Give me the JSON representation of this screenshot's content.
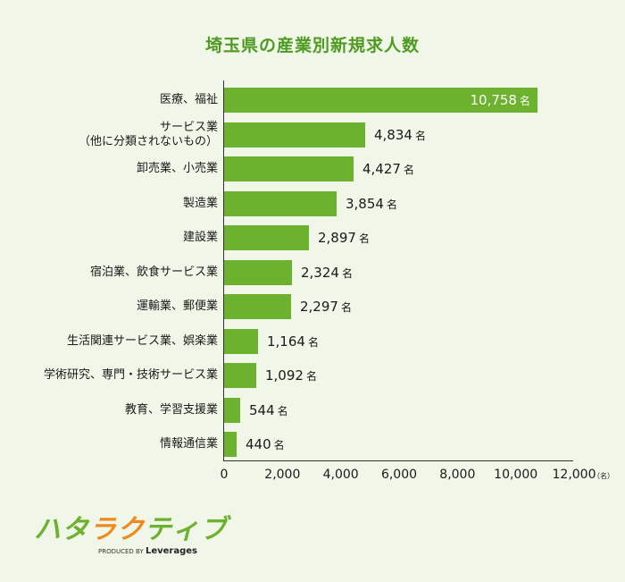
{
  "title": "埼玉県の産業別新規求人数",
  "chart_data": {
    "type": "bar",
    "orientation": "horizontal",
    "title": "埼玉県の産業別新規求人数",
    "xlabel": "",
    "ylabel": "",
    "unit": "名",
    "xlim": [
      0,
      12000
    ],
    "xticks": [
      "0",
      "2,000",
      "4,000",
      "6,000",
      "8,000",
      "10,000",
      "12,000"
    ],
    "x_unit_label": "（名）",
    "grid": false,
    "legend": null,
    "categories": [
      "医療、福祉",
      "サービス業（他に分類されないもの）",
      "卸売業、小売業",
      "製造業",
      "建設業",
      "宿泊業、飲食サービス業",
      "運輸業、郵便業",
      "生活関連サービス業、娯楽業",
      "学術研究、専門・技術サービス業",
      "教育、学習支援業",
      "情報通信業"
    ],
    "values": [
      10758,
      4834,
      4427,
      3854,
      2897,
      2324,
      2297,
      1164,
      1092,
      544,
      440
    ],
    "value_labels": [
      "10,758",
      "4,834",
      "4,427",
      "3,854",
      "2,897",
      "2,324",
      "2,297",
      "1,164",
      "1,092",
      "544",
      "440"
    ],
    "bar_color": "#6cb22f"
  },
  "rows": [
    {
      "line1": "医療、福祉",
      "line2": "",
      "label": "10,758",
      "unit": "名"
    },
    {
      "line1": "サービス業",
      "line2": "（他に分類されないもの）",
      "label": "4,834",
      "unit": "名"
    },
    {
      "line1": "卸売業、小売業",
      "line2": "",
      "label": "4,427",
      "unit": "名"
    },
    {
      "line1": "製造業",
      "line2": "",
      "label": "3,854",
      "unit": "名"
    },
    {
      "line1": "建設業",
      "line2": "",
      "label": "2,897",
      "unit": "名"
    },
    {
      "line1": "宿泊業、飲食サービス業",
      "line2": "",
      "label": "2,324",
      "unit": "名"
    },
    {
      "line1": "運輸業、郵便業",
      "line2": "",
      "label": "2,297",
      "unit": "名"
    },
    {
      "line1": "生活関連サービス業、娯楽業",
      "line2": "",
      "label": "1,164",
      "unit": "名"
    },
    {
      "line1": "学術研究、専門・技術サービス業",
      "line2": "",
      "label": "1,092",
      "unit": "名"
    },
    {
      "line1": "教育、学習支援業",
      "line2": "",
      "label": "544",
      "unit": "名"
    },
    {
      "line1": "情報通信業",
      "line2": "",
      "label": "440",
      "unit": "名"
    }
  ],
  "axis": {
    "ticks": [
      "0",
      "2,000",
      "4,000",
      "6,000",
      "8,000",
      "10,000",
      "12,000"
    ],
    "unit_label": "（名）"
  },
  "logo": {
    "chars": [
      "ハ",
      "タ",
      "ラ",
      "ク",
      "テ",
      "ィ",
      "ブ"
    ],
    "sub_prefix": "PRODUCED BY",
    "sub_brand": "Leverages"
  },
  "colors": {
    "background": "#f1f7e8",
    "bar": "#6cb22f",
    "title": "#4f9a22",
    "logo_green": "#6cb22f",
    "logo_orange": "#ef8a1e"
  }
}
